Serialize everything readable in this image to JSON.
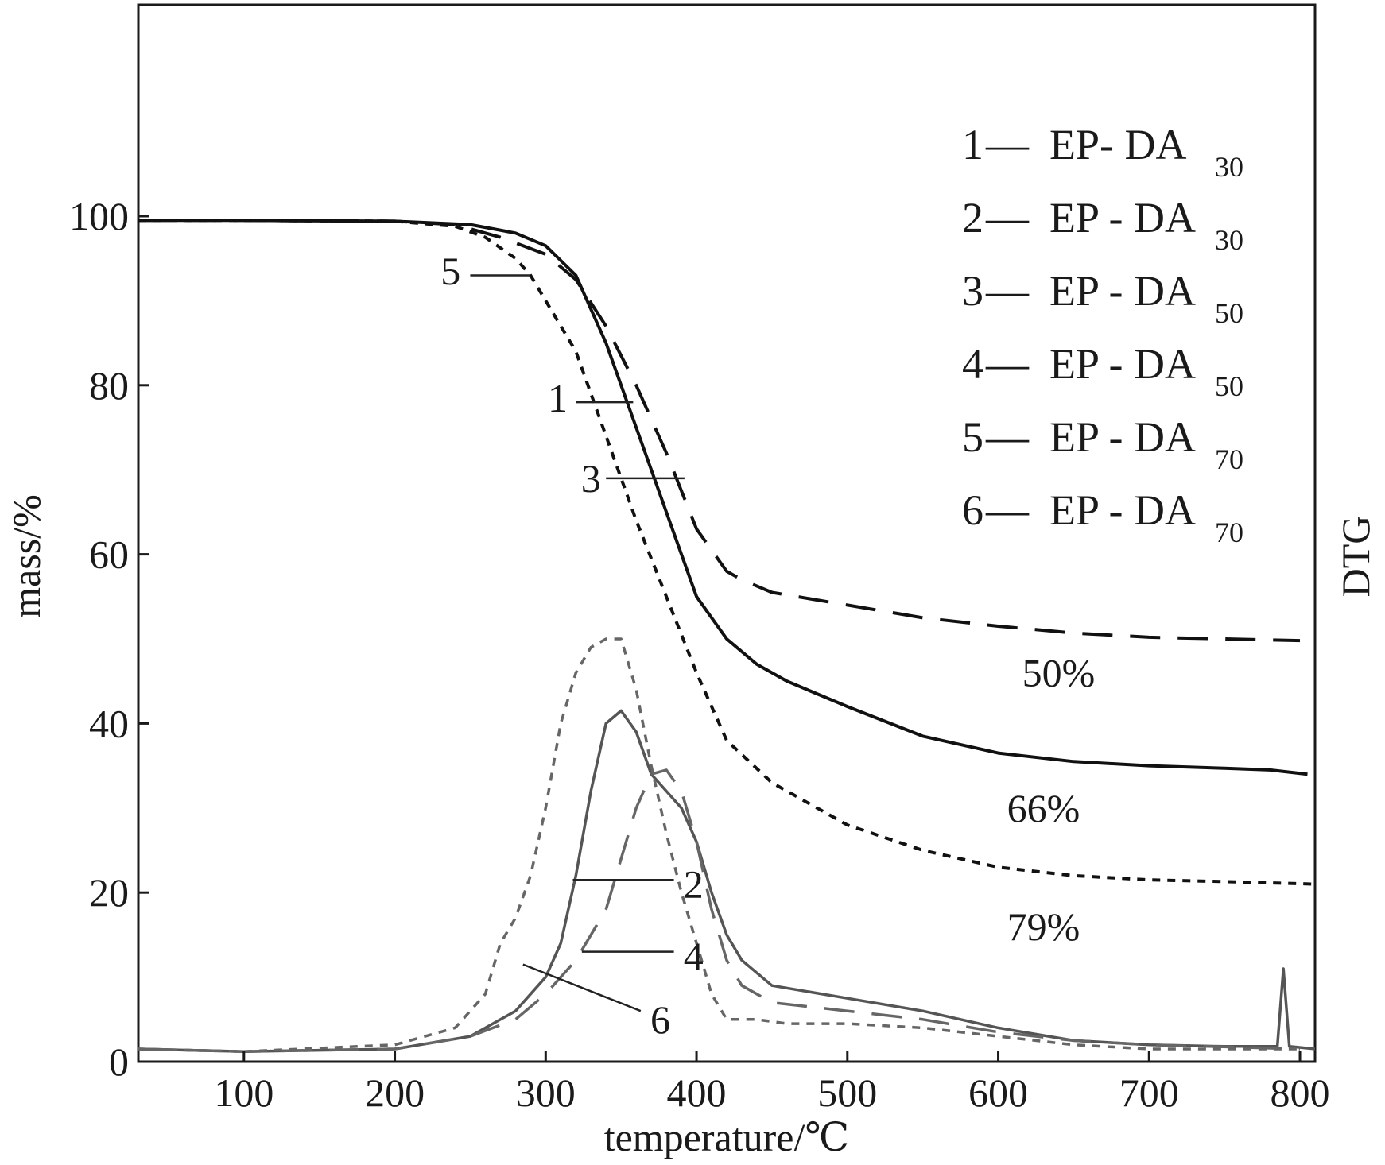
{
  "chart_data": {
    "type": "line",
    "xlabel": "temperature/℃",
    "ylabel": "mass/%",
    "y2label": "DTG",
    "xlim": [
      30,
      810
    ],
    "ylim": [
      0,
      125
    ],
    "x_ticks": [
      100,
      200,
      300,
      400,
      500,
      600,
      700,
      800
    ],
    "y_ticks": [
      0,
      20,
      40,
      60,
      80,
      100
    ],
    "grid": false,
    "legend_position": "top-right",
    "legend": [
      {
        "num": "1",
        "dash": "—",
        "text": "EP- DA",
        "sub": "30"
      },
      {
        "num": "2",
        "dash": "—",
        "text": "EP - DA",
        "sub": "30"
      },
      {
        "num": "3",
        "dash": "—",
        "text": "EP - DA",
        "sub": "50"
      },
      {
        "num": "4",
        "dash": "—",
        "text": "EP - DA",
        "sub": "50"
      },
      {
        "num": "5",
        "dash": "—",
        "text": "EP - DA",
        "sub": "70"
      },
      {
        "num": "6",
        "dash": "—",
        "text": "EP - DA",
        "sub": "70"
      }
    ],
    "series": [
      {
        "id": "1",
        "kind": "TG",
        "style": "solid",
        "color": "#111111",
        "x": [
          30,
          100,
          200,
          250,
          280,
          300,
          320,
          340,
          360,
          380,
          400,
          420,
          440,
          460,
          500,
          550,
          600,
          650,
          700,
          750,
          780,
          805
        ],
        "y": [
          99.5,
          99.5,
          99.4,
          99,
          98,
          96.5,
          93,
          85,
          75,
          65,
          55,
          50,
          47,
          45,
          42,
          38.5,
          36.5,
          35.5,
          35,
          34.7,
          34.5,
          34
        ]
      },
      {
        "id": "3",
        "kind": "TG",
        "style": "dashed",
        "color": "#111111",
        "x": [
          30,
          100,
          200,
          240,
          270,
          300,
          320,
          340,
          360,
          380,
          400,
          420,
          430,
          450,
          500,
          550,
          600,
          650,
          700,
          750,
          800
        ],
        "y": [
          99.5,
          99.5,
          99.4,
          99,
          97.5,
          95.5,
          92.5,
          87,
          80,
          72,
          63,
          58,
          57,
          55.5,
          54,
          52.5,
          51.5,
          50.7,
          50.2,
          50,
          49.8
        ]
      },
      {
        "id": "5",
        "kind": "TG",
        "style": "dotted",
        "color": "#111111",
        "x": [
          30,
          100,
          200,
          240,
          260,
          280,
          290,
          300,
          320,
          340,
          360,
          380,
          400,
          420,
          450,
          500,
          550,
          600,
          650,
          700,
          750,
          810
        ],
        "y": [
          99.5,
          99.5,
          99.4,
          98.8,
          97.5,
          95,
          93,
          90,
          84,
          74,
          64,
          55,
          46,
          38,
          33,
          28,
          25,
          23,
          22,
          21.5,
          21.3,
          21
        ]
      },
      {
        "id": "2",
        "kind": "DTG",
        "style": "solid",
        "color": "#555555",
        "x": [
          30,
          100,
          200,
          250,
          280,
          300,
          310,
          320,
          330,
          340,
          350,
          360,
          370,
          380,
          390,
          400,
          410,
          420,
          430,
          450,
          500,
          550,
          600,
          650,
          700,
          750,
          785,
          789,
          793,
          810
        ],
        "y": [
          1.5,
          1.2,
          1.5,
          3,
          6,
          10,
          14,
          22,
          32,
          40,
          41.5,
          39,
          34,
          32,
          30,
          26,
          20,
          15,
          12,
          9,
          7.5,
          6,
          4,
          2.5,
          2,
          1.8,
          1.8,
          11,
          1.8,
          1.5
        ]
      },
      {
        "id": "4",
        "kind": "DTG",
        "style": "dashed",
        "color": "#666666",
        "x": [
          30,
          100,
          200,
          250,
          280,
          300,
          320,
          340,
          350,
          360,
          370,
          380,
          390,
          400,
          410,
          420,
          430,
          450,
          500,
          550,
          600,
          650,
          700,
          800
        ],
        "y": [
          1.5,
          1.2,
          1.5,
          3,
          5,
          8,
          12,
          18,
          24,
          30,
          34,
          34.5,
          32,
          26,
          18,
          12,
          9,
          7,
          6,
          5,
          3.5,
          2.5,
          2,
          1.5
        ]
      },
      {
        "id": "6",
        "kind": "DTG",
        "style": "dotted",
        "color": "#666666",
        "x": [
          30,
          100,
          200,
          240,
          260,
          270,
          280,
          290,
          300,
          310,
          320,
          330,
          340,
          350,
          360,
          370,
          380,
          390,
          400,
          410,
          420,
          440,
          460,
          500,
          550,
          600,
          650,
          700,
          800
        ],
        "y": [
          1.5,
          1.2,
          2,
          4,
          8,
          14,
          17,
          22,
          30,
          40,
          46,
          49,
          50,
          50,
          44,
          35,
          27,
          20,
          14,
          8,
          5,
          5,
          4.5,
          4.5,
          4,
          3,
          2,
          1.5,
          1.5
        ]
      }
    ],
    "annotations": [
      {
        "text": "50%",
        "x": 640,
        "y": 46
      },
      {
        "text": "66%",
        "x": 630,
        "y": 30
      },
      {
        "text": "79%",
        "x": 630,
        "y": 16
      }
    ],
    "curve_labels": [
      {
        "text": "5",
        "x": 237,
        "y": 93.5,
        "lx1": 250,
        "ly1": 93,
        "lx2": 290,
        "ly2": 93
      },
      {
        "text": "1",
        "x": 308,
        "y": 78.5,
        "lx1": 320,
        "ly1": 78,
        "lx2": 358,
        "ly2": 78
      },
      {
        "text": "3",
        "x": 330,
        "y": 69,
        "lx1": 340,
        "ly1": 69,
        "lx2": 392,
        "ly2": 69
      },
      {
        "text": "2",
        "x": 398,
        "y": 21,
        "lx1": 385,
        "ly1": 21.5,
        "lx2": 318,
        "ly2": 21.5
      },
      {
        "text": "4",
        "x": 398,
        "y": 12.5,
        "lx1": 385,
        "ly1": 13,
        "lx2": 324,
        "ly2": 13
      },
      {
        "text": "6",
        "x": 376,
        "y": 5,
        "lx1": 363,
        "ly1": 6,
        "lx2": 285,
        "ly2": 11.5
      }
    ]
  }
}
